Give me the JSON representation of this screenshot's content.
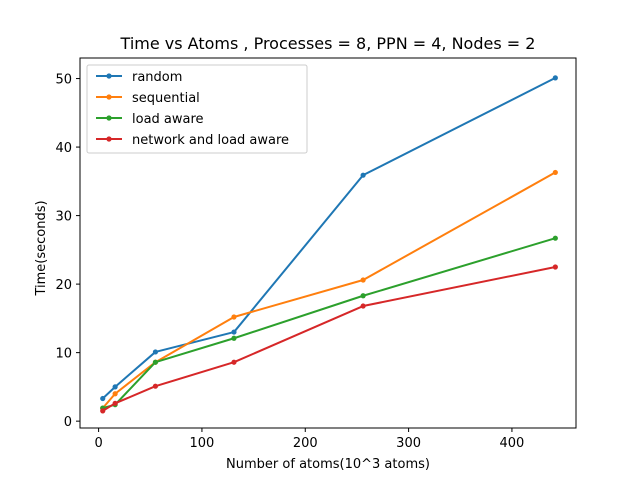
{
  "chart_data": {
    "type": "line",
    "title": "Time vs Atoms , Processes = 8, PPN = 4, Nodes = 2",
    "xlabel": "Number of atoms(10^3 atoms)",
    "ylabel": "Time(seconds)",
    "xlim": [
      -18,
      462
    ],
    "ylim": [
      -1,
      53
    ],
    "xticks": [
      0,
      100,
      200,
      300,
      400
    ],
    "yticks": [
      0,
      10,
      20,
      30,
      40,
      50
    ],
    "legend_position": "top-left",
    "grid": false,
    "series": [
      {
        "name": "random",
        "color": "#1f77b4",
        "x": [
          4,
          16,
          55,
          131,
          256,
          442
        ],
        "y": [
          3.3,
          5.0,
          10.1,
          13.0,
          35.9,
          50.1
        ]
      },
      {
        "name": "sequential",
        "color": "#ff7f0e",
        "x": [
          4,
          16,
          55,
          131,
          256,
          442
        ],
        "y": [
          1.9,
          4.0,
          8.6,
          15.2,
          20.6,
          36.3
        ]
      },
      {
        "name": "load aware",
        "color": "#2ca02c",
        "x": [
          4,
          16,
          55,
          131,
          256,
          442
        ],
        "y": [
          1.9,
          2.4,
          8.6,
          12.1,
          18.3,
          26.7
        ]
      },
      {
        "name": "network and load aware",
        "color": "#d62728",
        "x": [
          4,
          16,
          55,
          131,
          256,
          442
        ],
        "y": [
          1.5,
          2.6,
          5.1,
          8.6,
          16.8,
          22.5
        ]
      }
    ]
  }
}
